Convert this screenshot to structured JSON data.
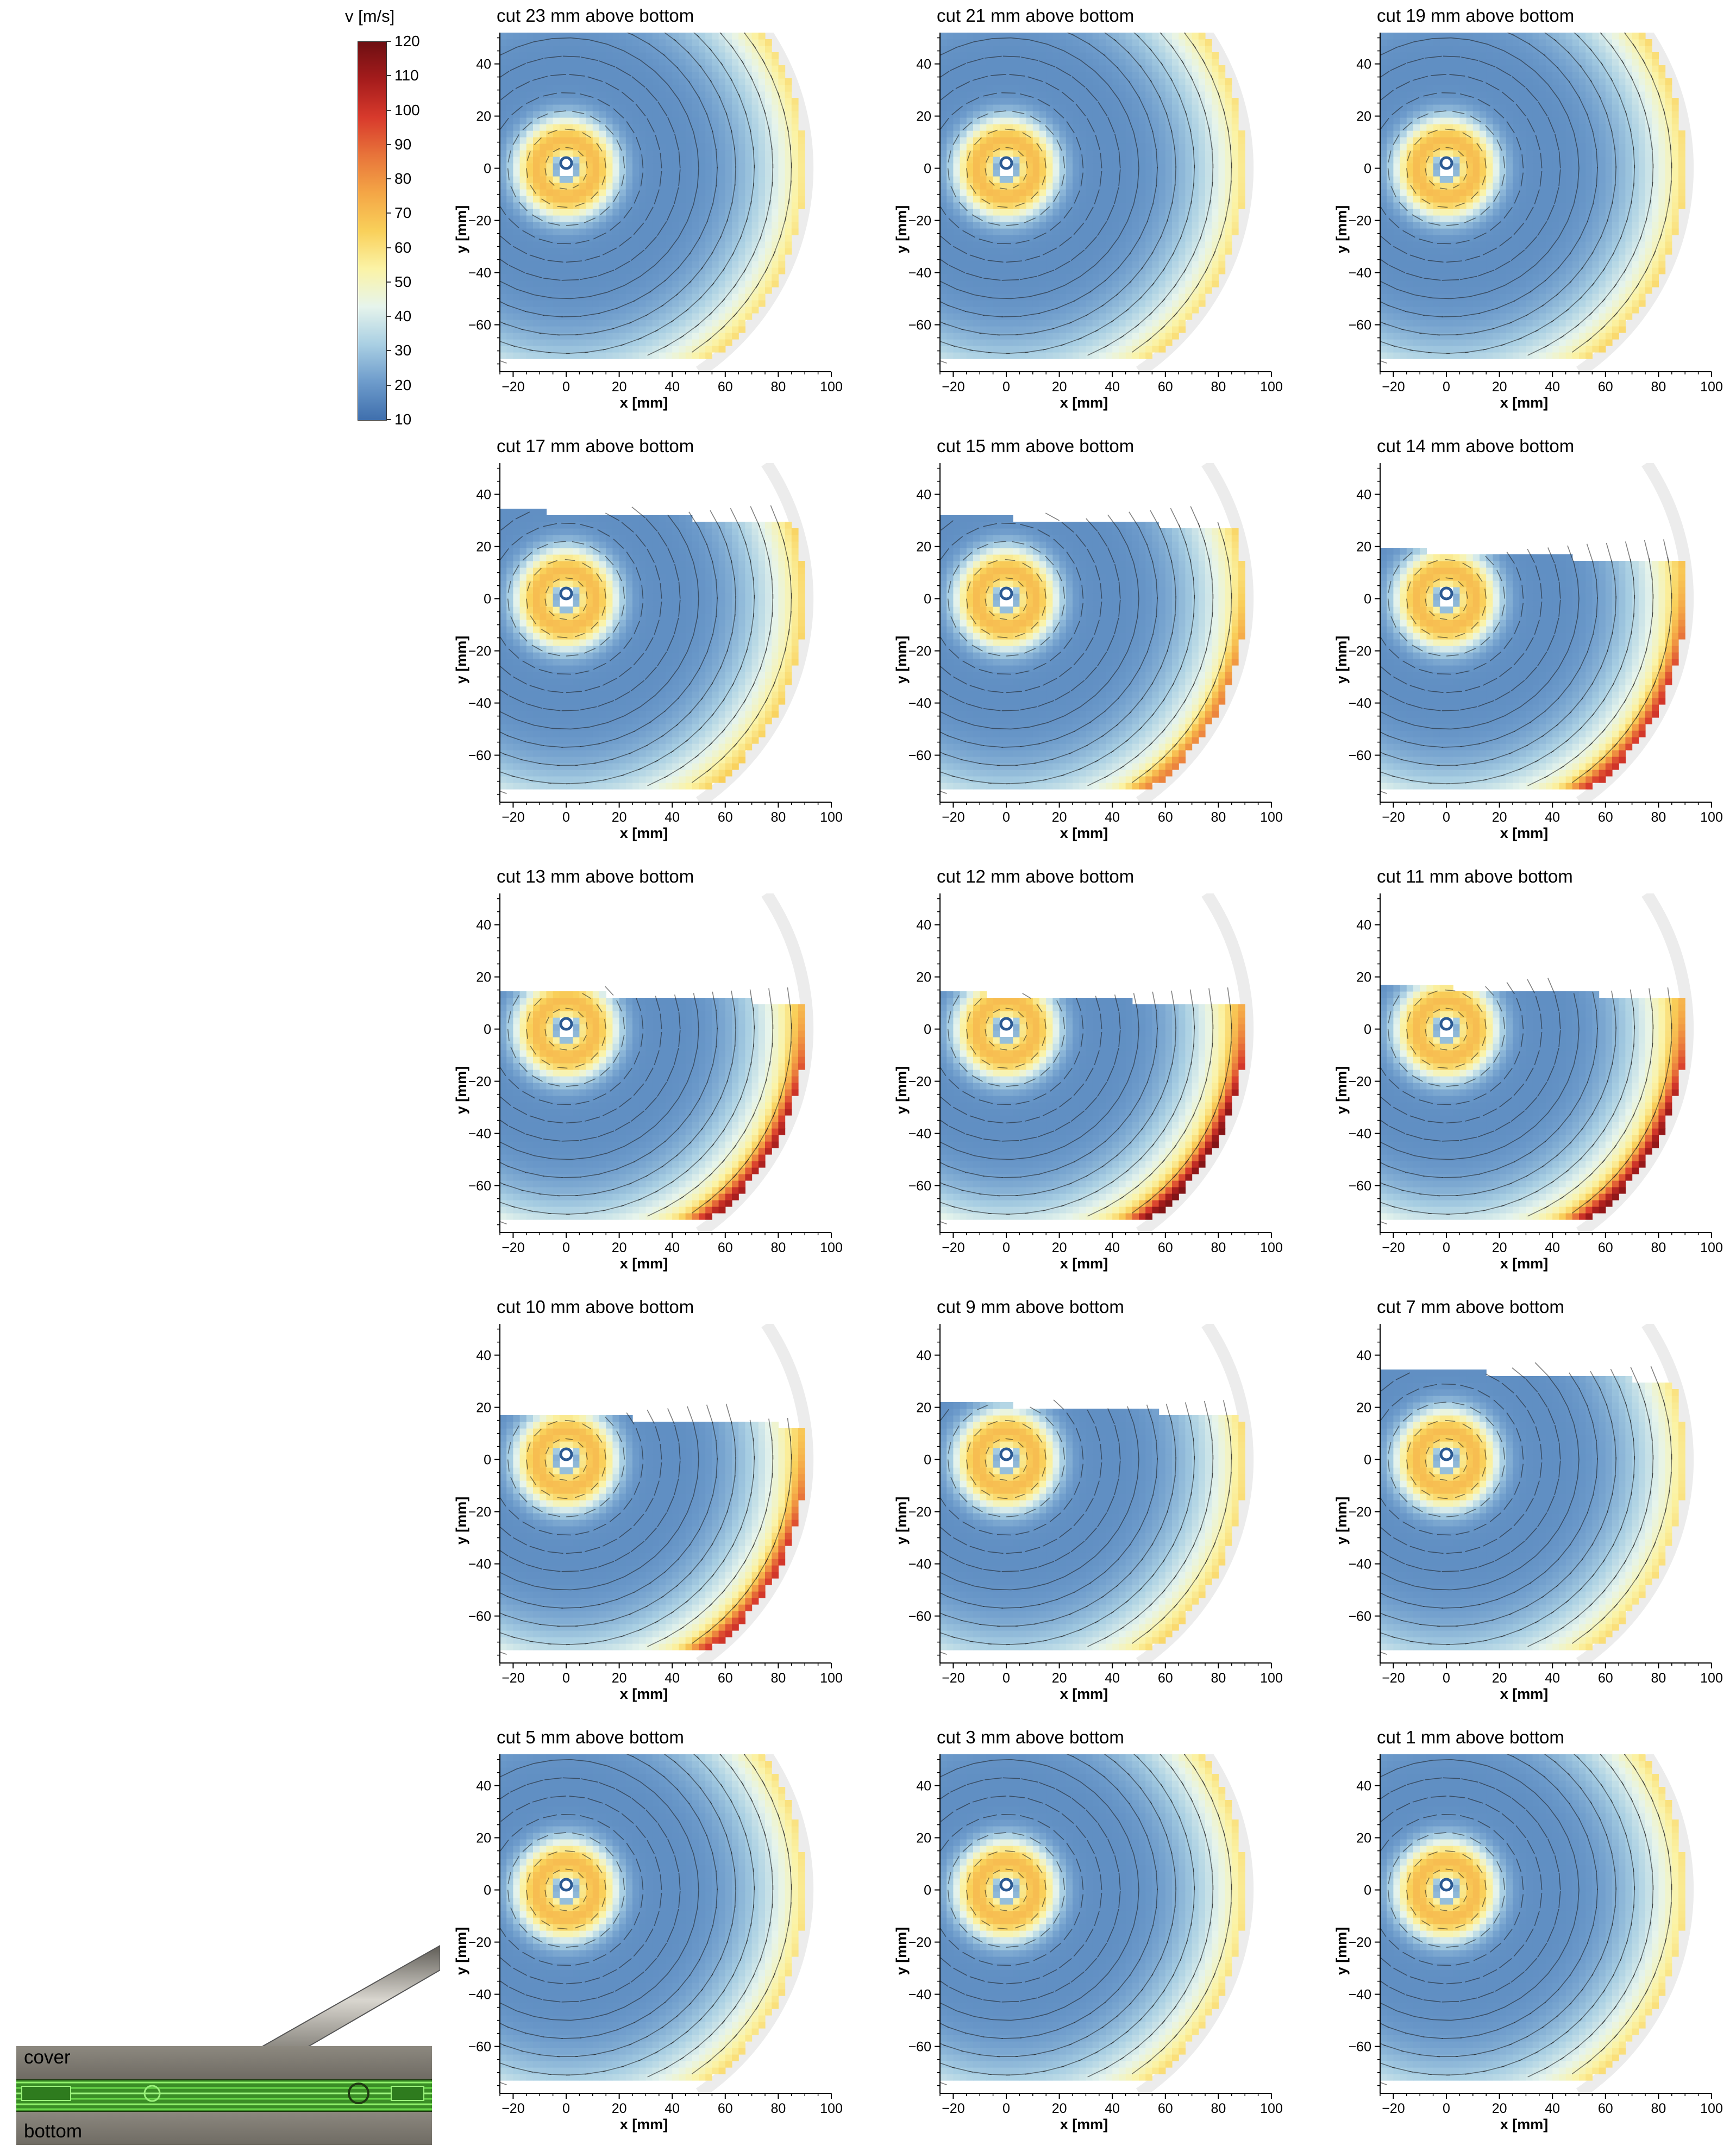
{
  "colorbar": {
    "title": "v [m/s]",
    "ticks": [
      120,
      110,
      100,
      90,
      80,
      70,
      60,
      50,
      40,
      30,
      20,
      10
    ],
    "vmin": 10,
    "vmax": 120,
    "colors": [
      "#3f6fad",
      "#6d9bcb",
      "#a9cfe3",
      "#e6f4ec",
      "#fbf3a6",
      "#f9d05a",
      "#f4a646",
      "#e8743a",
      "#d83a2c",
      "#a51c1c",
      "#6e0f12"
    ]
  },
  "axes": {
    "xlabel": "x [mm]",
    "ylabel": "y [mm]",
    "xticks": [
      "−20",
      "0",
      "20",
      "40",
      "60",
      "80",
      "100"
    ],
    "yticks": [
      "40",
      "20",
      "0",
      "−20",
      "−40",
      "−60"
    ],
    "xlim": [
      -25,
      100
    ],
    "ylim": [
      -78,
      52
    ]
  },
  "chart_data": {
    "type": "heatmap",
    "quantity": "v [m/s]",
    "panels": [
      {
        "title": "cut 23 mm above bottom",
        "ymax": 52,
        "peak": 70
      },
      {
        "title": "cut 21 mm above bottom",
        "ymax": 52,
        "peak": 70
      },
      {
        "title": "cut 19 mm above bottom",
        "ymax": 52,
        "peak": 72
      },
      {
        "title": "cut 17 mm above bottom",
        "ymax": 34,
        "peak": 75
      },
      {
        "title": "cut 15 mm above bottom",
        "ymax": 32,
        "peak": 90
      },
      {
        "title": "cut 14 mm above bottom",
        "ymax": 19,
        "peak": 100
      },
      {
        "title": "cut 13 mm above bottom",
        "ymax": 15,
        "peak": 105
      },
      {
        "title": "cut 12 mm above bottom",
        "ymax": 14,
        "peak": 110
      },
      {
        "title": "cut 11 mm above bottom",
        "ymax": 17,
        "peak": 108
      },
      {
        "title": "cut 10 mm above bottom",
        "ymax": 18,
        "peak": 100
      },
      {
        "title": "cut 9 mm above bottom",
        "ymax": 22,
        "peak": 72
      },
      {
        "title": "cut 7 mm above bottom",
        "ymax": 35,
        "peak": 70
      },
      {
        "title": "cut 5 mm above bottom",
        "ymax": 52,
        "peak": 70
      },
      {
        "title": "cut 3 mm above bottom",
        "ymax": 52,
        "peak": 70
      },
      {
        "title": "cut 1 mm above bottom",
        "ymax": 52,
        "peak": 70
      }
    ]
  },
  "inset": {
    "top_label": "cover",
    "bottom_label": "bottom"
  }
}
